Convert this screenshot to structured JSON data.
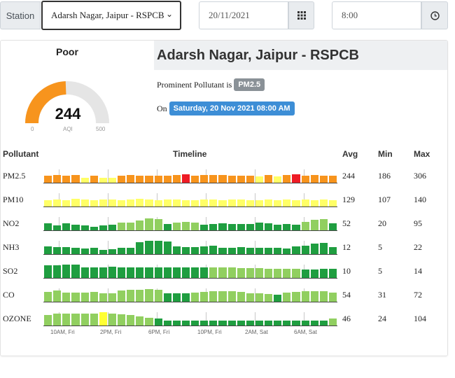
{
  "toolbar": {
    "station_label": "Station",
    "station_value": "Adarsh Nagar, Jaipur - RSPCB",
    "date_value": "20/11/2021",
    "time_value": "8:00"
  },
  "gauge": {
    "status": "Poor",
    "value": 244,
    "min_label": "0",
    "unit_label": "AQI",
    "max_label": "500",
    "range": [
      0,
      500
    ],
    "fill_color": "#f7941d"
  },
  "info": {
    "station_title": "Adarsh Nagar, Jaipur - RSPCB",
    "prominent_text": "Prominent Pollutant is",
    "prominent_badge": "PM2.5",
    "on_text": "On",
    "datetime_badge": "Saturday, 20 Nov 2021 08:00 AM"
  },
  "table": {
    "headers": {
      "pollutant": "Pollutant",
      "timeline": "Timeline",
      "avg": "Avg",
      "min": "Min",
      "max": "Max"
    },
    "x_labels": [
      "10AM, Fri",
      "2PM, Fri",
      "6PM, Fri",
      "10PM, Fri",
      "2AM, Sat",
      "6AM, Sat"
    ],
    "rows": [
      {
        "name": "PM2.5",
        "avg": "244",
        "min": "186",
        "max": "306",
        "bars": [
          0.5,
          0.55,
          0.5,
          0.55,
          0.35,
          0.5,
          0.35,
          0.35,
          0.5,
          0.55,
          0.5,
          0.5,
          0.5,
          0.5,
          0.55,
          0.6,
          0.5,
          0.55,
          0.55,
          0.55,
          0.5,
          0.5,
          0.5,
          0.45,
          0.55,
          0.45,
          0.55,
          0.6,
          0.5,
          0.55,
          0.5,
          0.5
        ],
        "colors": [
          "#f7941d",
          "#f7941d",
          "#f7941d",
          "#f7941d",
          "#ffff66",
          "#f7941d",
          "#ffff66",
          "#ffff66",
          "#f7941d",
          "#f7941d",
          "#f7941d",
          "#f7941d",
          "#f7941d",
          "#f7941d",
          "#f7941d",
          "#ee1c25",
          "#f7941d",
          "#f7941d",
          "#f7941d",
          "#f7941d",
          "#f7941d",
          "#f7941d",
          "#f7941d",
          "#ffff66",
          "#f7941d",
          "#ffff66",
          "#f7941d",
          "#ee1c25",
          "#f7941d",
          "#f7941d",
          "#f7941d",
          "#f7941d"
        ]
      },
      {
        "name": "PM10",
        "avg": "129",
        "min": "107",
        "max": "140",
        "bars": [
          0.45,
          0.5,
          0.45,
          0.55,
          0.5,
          0.45,
          0.5,
          0.5,
          0.45,
          0.5,
          0.55,
          0.5,
          0.45,
          0.5,
          0.5,
          0.45,
          0.45,
          0.5,
          0.5,
          0.45,
          0.5,
          0.5,
          0.45,
          0.45,
          0.5,
          0.45,
          0.5,
          0.45,
          0.5,
          0.45,
          0.5,
          0.45
        ],
        "colors": [
          "#ffff66",
          "#ffff66",
          "#ffff66",
          "#ffff66",
          "#ffff66",
          "#ffff66",
          "#ffff66",
          "#ffff66",
          "#ffff66",
          "#ffff66",
          "#ffff66",
          "#ffff66",
          "#ffff66",
          "#ffff66",
          "#ffff66",
          "#ffff66",
          "#ffff66",
          "#ffff66",
          "#ffff66",
          "#ffff66",
          "#ffff66",
          "#ffff66",
          "#ffff66",
          "#ffff66",
          "#ffff66",
          "#ffff66",
          "#ffff66",
          "#ffff66",
          "#ffff66",
          "#ffff66",
          "#ffff66",
          "#ffff66"
        ]
      },
      {
        "name": "NO2",
        "avg": "52",
        "min": "20",
        "max": "95",
        "bars": [
          0.5,
          0.35,
          0.5,
          0.4,
          0.35,
          0.25,
          0.35,
          0.4,
          0.55,
          0.55,
          0.7,
          0.85,
          0.8,
          0.45,
          0.55,
          0.6,
          0.55,
          0.4,
          0.45,
          0.5,
          0.45,
          0.45,
          0.45,
          0.55,
          0.5,
          0.4,
          0.45,
          0.4,
          0.6,
          0.75,
          0.8,
          0.5
        ],
        "colors": [
          "#1f9e40",
          "#1f9e40",
          "#1f9e40",
          "#1f9e40",
          "#1f9e40",
          "#1f9e40",
          "#1f9e40",
          "#1f9e40",
          "#91cf60",
          "#91cf60",
          "#91cf60",
          "#91cf60",
          "#91cf60",
          "#1f9e40",
          "#91cf60",
          "#91cf60",
          "#91cf60",
          "#1f9e40",
          "#1f9e40",
          "#1f9e40",
          "#1f9e40",
          "#1f9e40",
          "#1f9e40",
          "#1f9e40",
          "#1f9e40",
          "#1f9e40",
          "#1f9e40",
          "#1f9e40",
          "#91cf60",
          "#91cf60",
          "#91cf60",
          "#1f9e40"
        ]
      },
      {
        "name": "NH3",
        "avg": "12",
        "min": "5",
        "max": "22",
        "bars": [
          0.55,
          0.5,
          0.5,
          0.45,
          0.4,
          0.45,
          0.3,
          0.35,
          0.45,
          0.45,
          0.85,
          0.95,
          0.95,
          0.9,
          0.55,
          0.5,
          0.5,
          0.55,
          0.6,
          0.45,
          0.45,
          0.5,
          0.45,
          0.45,
          0.45,
          0.45,
          0.4,
          0.55,
          0.6,
          0.75,
          0.8,
          0.5
        ],
        "colors": [
          "#1f9e40",
          "#1f9e40",
          "#1f9e40",
          "#1f9e40",
          "#1f9e40",
          "#1f9e40",
          "#1f9e40",
          "#1f9e40",
          "#1f9e40",
          "#1f9e40",
          "#1f9e40",
          "#1f9e40",
          "#1f9e40",
          "#1f9e40",
          "#1f9e40",
          "#1f9e40",
          "#1f9e40",
          "#1f9e40",
          "#1f9e40",
          "#1f9e40",
          "#1f9e40",
          "#1f9e40",
          "#1f9e40",
          "#1f9e40",
          "#1f9e40",
          "#1f9e40",
          "#1f9e40",
          "#1f9e40",
          "#1f9e40",
          "#1f9e40",
          "#1f9e40",
          "#1f9e40"
        ]
      },
      {
        "name": "SO2",
        "avg": "10",
        "min": "5",
        "max": "14",
        "bars": [
          0.9,
          0.9,
          0.95,
          0.95,
          0.75,
          0.75,
          0.75,
          0.8,
          0.75,
          0.75,
          0.75,
          0.75,
          0.75,
          0.75,
          0.75,
          0.75,
          0.75,
          0.75,
          0.75,
          0.75,
          0.75,
          0.7,
          0.7,
          0.7,
          0.65,
          0.65,
          0.65,
          0.65,
          0.6,
          0.6,
          0.65,
          0.65
        ],
        "colors": [
          "#1f9e40",
          "#1f9e40",
          "#1f9e40",
          "#1f9e40",
          "#1f9e40",
          "#1f9e40",
          "#1f9e40",
          "#1f9e40",
          "#1f9e40",
          "#1f9e40",
          "#1f9e40",
          "#1f9e40",
          "#1f9e40",
          "#1f9e40",
          "#1f9e40",
          "#1f9e40",
          "#1f9e40",
          "#1f9e40",
          "#91cf60",
          "#91cf60",
          "#91cf60",
          "#91cf60",
          "#91cf60",
          "#91cf60",
          "#91cf60",
          "#91cf60",
          "#91cf60",
          "#91cf60",
          "#1f9e40",
          "#1f9e40",
          "#1f9e40",
          "#1f9e40"
        ]
      },
      {
        "name": "CO",
        "avg": "54",
        "min": "31",
        "max": "72",
        "bars": [
          0.7,
          0.8,
          0.65,
          0.65,
          0.65,
          0.7,
          0.6,
          0.6,
          0.8,
          0.85,
          0.85,
          0.9,
          0.85,
          0.6,
          0.6,
          0.6,
          0.65,
          0.7,
          0.75,
          0.75,
          0.75,
          0.7,
          0.6,
          0.6,
          0.55,
          0.5,
          0.65,
          0.7,
          0.75,
          0.75,
          0.75,
          0.65
        ],
        "colors": [
          "#91cf60",
          "#91cf60",
          "#91cf60",
          "#91cf60",
          "#91cf60",
          "#91cf60",
          "#91cf60",
          "#91cf60",
          "#91cf60",
          "#91cf60",
          "#91cf60",
          "#91cf60",
          "#91cf60",
          "#1f9e40",
          "#1f9e40",
          "#1f9e40",
          "#91cf60",
          "#91cf60",
          "#91cf60",
          "#91cf60",
          "#91cf60",
          "#91cf60",
          "#91cf60",
          "#91cf60",
          "#91cf60",
          "#1f9e40",
          "#91cf60",
          "#91cf60",
          "#91cf60",
          "#91cf60",
          "#91cf60",
          "#91cf60"
        ]
      },
      {
        "name": "OZONE",
        "avg": "46",
        "min": "24",
        "max": "104",
        "bars": [
          0.75,
          0.85,
          0.85,
          0.85,
          0.85,
          0.85,
          0.95,
          0.85,
          0.8,
          0.75,
          0.65,
          0.55,
          0.5,
          0.35,
          0.35,
          0.35,
          0.35,
          0.35,
          0.35,
          0.35,
          0.35,
          0.35,
          0.35,
          0.35,
          0.35,
          0.35,
          0.35,
          0.35,
          0.35,
          0.35,
          0.35,
          0.5
        ],
        "colors": [
          "#91cf60",
          "#91cf60",
          "#91cf60",
          "#91cf60",
          "#91cf60",
          "#91cf60",
          "#ffff33",
          "#91cf60",
          "#91cf60",
          "#91cf60",
          "#91cf60",
          "#91cf60",
          "#1f9e40",
          "#1f9e40",
          "#1f9e40",
          "#1f9e40",
          "#1f9e40",
          "#1f9e40",
          "#1f9e40",
          "#1f9e40",
          "#1f9e40",
          "#1f9e40",
          "#1f9e40",
          "#1f9e40",
          "#1f9e40",
          "#1f9e40",
          "#1f9e40",
          "#1f9e40",
          "#1f9e40",
          "#1f9e40",
          "#1f9e40",
          "#91cf60"
        ]
      }
    ]
  }
}
